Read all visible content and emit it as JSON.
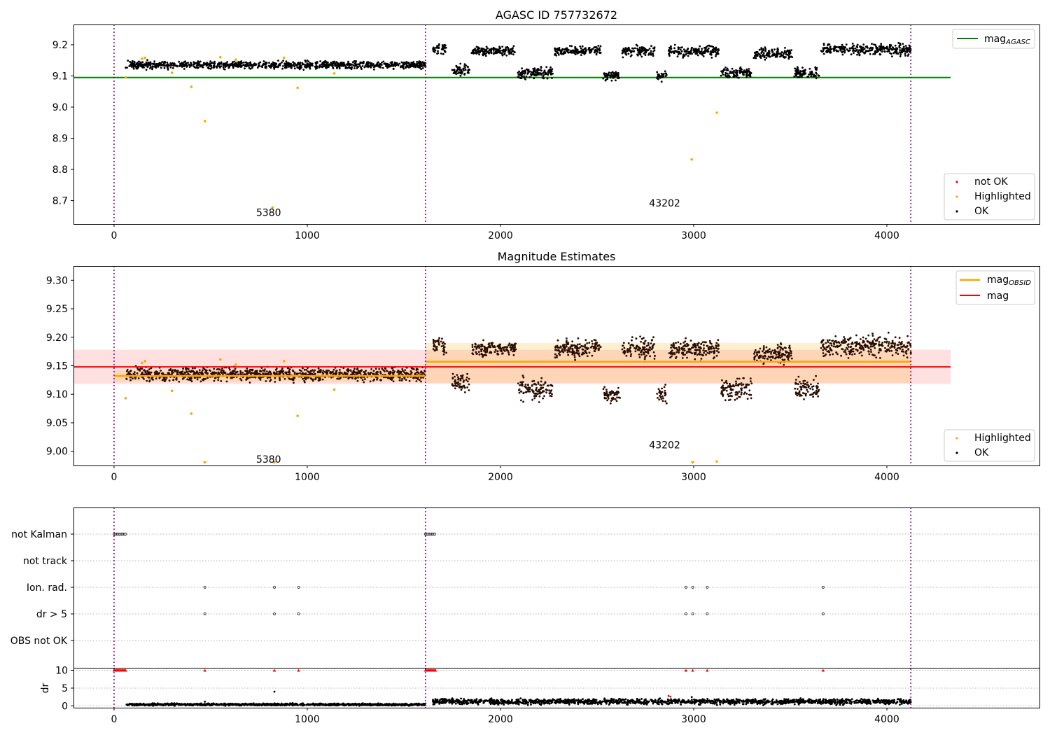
{
  "chart_data": [
    {
      "type": "scatter",
      "title": "AGASC ID 757732672",
      "xlim": [
        -210,
        4790
      ],
      "ylim": [
        8.625,
        9.265
      ],
      "xticks": [
        0,
        1000,
        2000,
        3000,
        4000
      ],
      "yticks": [
        8.7,
        8.8,
        8.9,
        9.0,
        9.1,
        9.2
      ],
      "ytick_labels": [
        "8.7",
        "8.8",
        "8.9",
        "9.0",
        "9.1",
        "9.2"
      ],
      "obs_boundaries": [
        0,
        1612,
        4124
      ],
      "obs_labels": [
        {
          "text": "5380",
          "x": 800,
          "y": 8.66
        },
        {
          "text": "43202",
          "x": 2850,
          "y": 8.69
        }
      ],
      "hlines": [
        {
          "name": "mag_AGASC",
          "value": 9.095,
          "x0": -210,
          "x1": 4330,
          "color": "#008000"
        }
      ],
      "ok_points": {
        "segments": [
          {
            "x0": 60,
            "x1": 1612,
            "mean": 9.135,
            "wobble": 0.008
          },
          {
            "x0": 1650,
            "x1": 1720,
            "mean": 9.185,
            "wobble": 0.01
          },
          {
            "x0": 1750,
            "x1": 1840,
            "mean": 9.12,
            "wobble": 0.012
          },
          {
            "x0": 1850,
            "x1": 2080,
            "mean": 9.18,
            "wobble": 0.01
          },
          {
            "x0": 2090,
            "x1": 2270,
            "mean": 9.11,
            "wobble": 0.012
          },
          {
            "x0": 2280,
            "x1": 2520,
            "mean": 9.18,
            "wobble": 0.01
          },
          {
            "x0": 2530,
            "x1": 2620,
            "mean": 9.1,
            "wobble": 0.01
          },
          {
            "x0": 2630,
            "x1": 2800,
            "mean": 9.18,
            "wobble": 0.012
          },
          {
            "x0": 2810,
            "x1": 2860,
            "mean": 9.1,
            "wobble": 0.01
          },
          {
            "x0": 2870,
            "x1": 3130,
            "mean": 9.18,
            "wobble": 0.012
          },
          {
            "x0": 3140,
            "x1": 3300,
            "mean": 9.11,
            "wobble": 0.012
          },
          {
            "x0": 3310,
            "x1": 3510,
            "mean": 9.17,
            "wobble": 0.012
          },
          {
            "x0": 3520,
            "x1": 3650,
            "mean": 9.11,
            "wobble": 0.012
          },
          {
            "x0": 3660,
            "x1": 4124,
            "mean": 9.185,
            "wobble": 0.012
          }
        ]
      },
      "highlighted_points": {
        "x": [
          60,
          145,
          160,
          300,
          400,
          470,
          550,
          630,
          820,
          880,
          950,
          1140,
          2990,
          3120
        ],
        "y": [
          9.095,
          9.155,
          9.158,
          9.11,
          9.065,
          8.955,
          9.16,
          9.152,
          8.678,
          9.158,
          9.062,
          9.108,
          8.832,
          8.982
        ]
      },
      "legends": [
        {
          "position": "upper-right",
          "entries": [
            "mag_AGASC"
          ]
        },
        {
          "position": "lower-right",
          "entries": [
            "not OK",
            "Highlighted",
            "OK"
          ]
        }
      ],
      "colors": {
        "ok": "#000000",
        "highlighted": "#ffa500",
        "not_ok": "#ff0000",
        "agasc_line": "#008000",
        "boundary": "#800080"
      }
    },
    {
      "type": "scatter",
      "title": "Magnitude Estimates",
      "xlim": [
        -210,
        4790
      ],
      "ylim": [
        8.975,
        9.325
      ],
      "xticks": [
        0,
        1000,
        2000,
        3000,
        4000
      ],
      "yticks": [
        9.0,
        9.05,
        9.1,
        9.15,
        9.2,
        9.25,
        9.3
      ],
      "ytick_labels": [
        "9.00",
        "9.05",
        "9.10",
        "9.15",
        "9.20",
        "9.25",
        "9.30"
      ],
      "obs_boundaries": [
        0,
        1612,
        4124
      ],
      "obs_labels": [
        {
          "text": "5380",
          "x": 800,
          "y": 8.985
        },
        {
          "text": "43202",
          "x": 2850,
          "y": 9.01
        }
      ],
      "mag": {
        "value": 9.148,
        "band": [
          9.118,
          9.178
        ],
        "x0": -210,
        "x1": 4330,
        "color": "#ff0000"
      },
      "mag_obsid": [
        {
          "obsid": "5380",
          "x0": 0,
          "x1": 1612,
          "value": 9.132,
          "band": [
            9.122,
            9.142
          ]
        },
        {
          "obsid": "43202",
          "x0": 1612,
          "x1": 4124,
          "value": 9.157,
          "band": [
            9.12,
            9.19
          ]
        }
      ],
      "highlighted_points": {
        "x": [
          60,
          145,
          160,
          300,
          400,
          550,
          630,
          880,
          950,
          1140,
          3120
        ],
        "y": [
          9.093,
          9.155,
          9.158,
          9.106,
          9.066,
          9.161,
          9.152,
          9.158,
          9.062,
          9.108,
          8.982
        ]
      },
      "out_of_range_markers": [
        470,
        830,
        2995
      ],
      "legends": [
        {
          "position": "upper-right",
          "entries": [
            "mag_OBSID",
            "mag"
          ]
        },
        {
          "position": "lower-right",
          "entries": [
            "Highlighted",
            "OK"
          ]
        }
      ],
      "colors": {
        "ok": "#000000",
        "highlighted": "#ffa500",
        "mag": "#ff0000",
        "mag_obsid": "#ffa500",
        "boundary": "#800080"
      }
    },
    {
      "type": "scatter",
      "title": "",
      "xlim": [
        -210,
        4790
      ],
      "xticks": [
        0,
        1000,
        2000,
        3000,
        4000
      ],
      "obs_boundaries": [
        0,
        1612,
        4124
      ],
      "flag_rows": [
        {
          "label": "not Kalman",
          "x_ranges": [
            [
              0,
              60
            ],
            [
              1612,
              1665
            ]
          ],
          "x": []
        },
        {
          "label": "not track",
          "x_ranges": [],
          "x": []
        },
        {
          "label": "Ion. rad.",
          "x_ranges": [],
          "x": [
            470,
            830,
            955,
            2960,
            2995,
            3070,
            3670
          ]
        },
        {
          "label": "dr > 5",
          "x_ranges": [],
          "x": [
            470,
            830,
            955,
            2960,
            2995,
            3070,
            3670
          ]
        },
        {
          "label": "OBS not OK",
          "x_ranges": [],
          "x": []
        }
      ],
      "dr": {
        "ylabel": "dr",
        "ylim": [
          -0.5,
          10.5
        ],
        "yticks": [
          0,
          5,
          10
        ],
        "ytick_labels": [
          "0",
          "5",
          "10"
        ],
        "capped_value": 10,
        "capped_x": [
          470,
          830,
          955,
          2960,
          2995,
          3070,
          3670
        ],
        "capped_ranges": [
          [
            0,
            60
          ],
          [
            1612,
            1665
          ]
        ],
        "segments": [
          {
            "x0": 60,
            "x1": 1612,
            "mean": 0.4,
            "wobble": 0.2
          },
          {
            "x0": 1650,
            "x1": 4124,
            "mean": 1.2,
            "wobble": 0.5
          }
        ],
        "extra_points": {
          "x": [
            470,
            830,
            2870,
            2880,
            2990
          ],
          "y": [
            1.2,
            4.0,
            2.8,
            2.6,
            2.5
          ]
        }
      },
      "colors": {
        "ok": "#000000",
        "capped": "#ff0000",
        "boundary": "#800080"
      }
    }
  ]
}
